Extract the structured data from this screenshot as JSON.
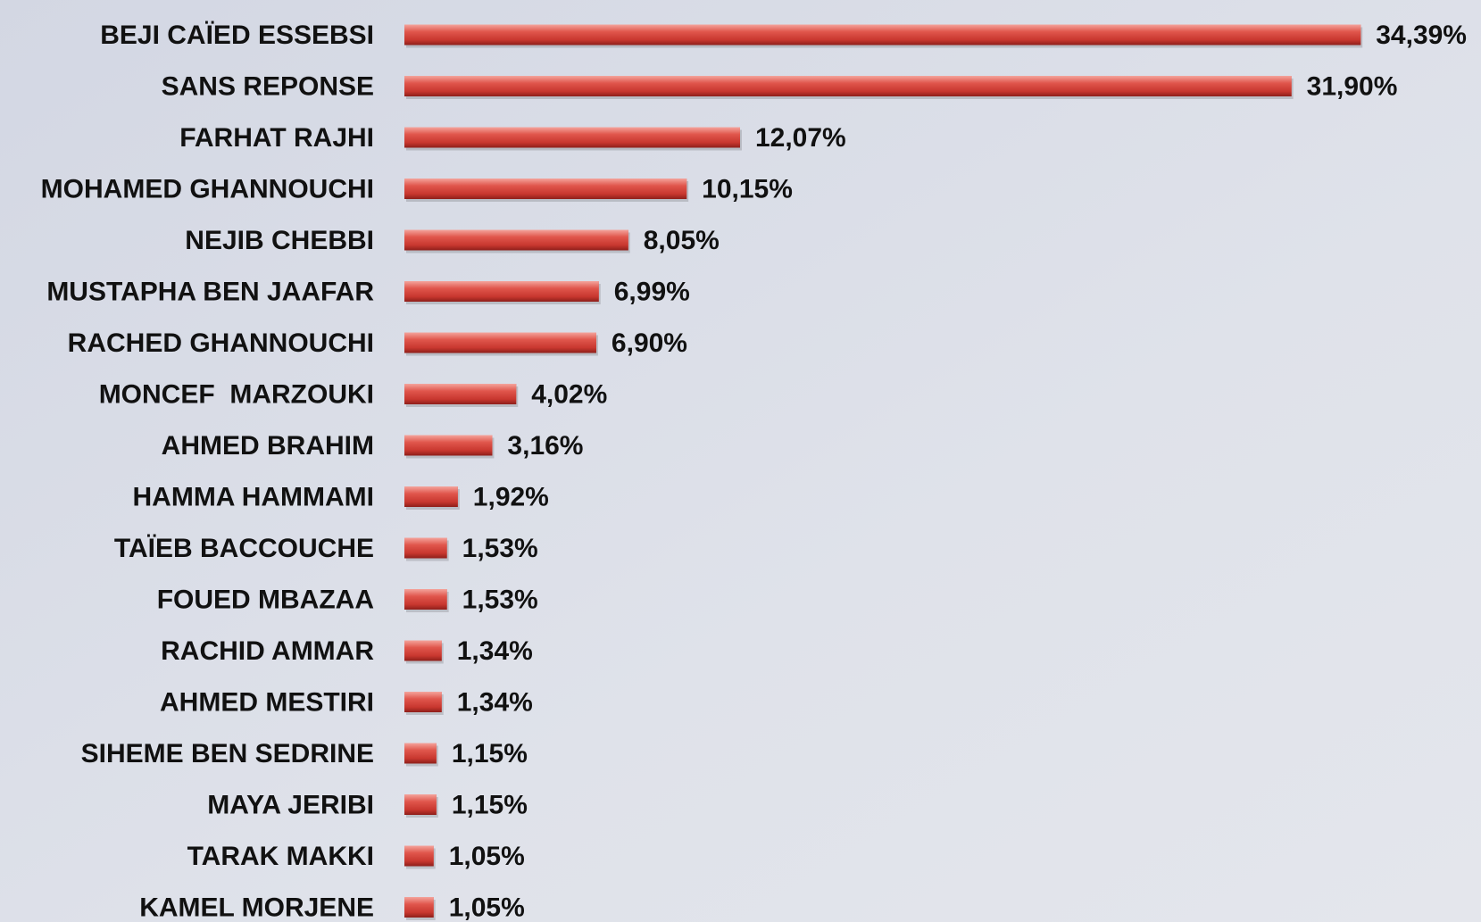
{
  "chart_data": {
    "type": "bar",
    "orientation": "horizontal",
    "color": "#d9473f",
    "categories": [
      "BEJI CAÏED ESSEBSI",
      "SANS REPONSE",
      "FARHAT RAJHI",
      "MOHAMED GHANNOUCHI",
      "NEJIB CHEBBI",
      "MUSTAPHA BEN JAAFAR",
      "RACHED GHANNOUCHI",
      "MONCEF  MARZOUKI",
      "AHMED BRAHIM",
      "HAMMA HAMMAMI",
      "TAÏEB BACCOUCHE",
      "FOUED MBAZAA",
      "RACHID AMMAR",
      "AHMED MESTIRI",
      "SIHEME BEN SEDRINE",
      "MAYA JERIBI",
      "TARAK MAKKI",
      "KAMEL MORJENE"
    ],
    "values": [
      34.39,
      31.9,
      12.07,
      10.15,
      8.05,
      6.99,
      6.9,
      4.02,
      3.16,
      1.92,
      1.53,
      1.53,
      1.34,
      1.34,
      1.15,
      1.15,
      1.05,
      1.05
    ],
    "value_labels": [
      "34,39%",
      "31,90%",
      "12,07%",
      "10,15%",
      "8,05%",
      "6,99%",
      "6,90%",
      "4,02%",
      "3,16%",
      "1,92%",
      "1,53%",
      "1,53%",
      "1,34%",
      "1,34%",
      "1,15%",
      "1,15%",
      "1,05%",
      "1,05%"
    ]
  }
}
